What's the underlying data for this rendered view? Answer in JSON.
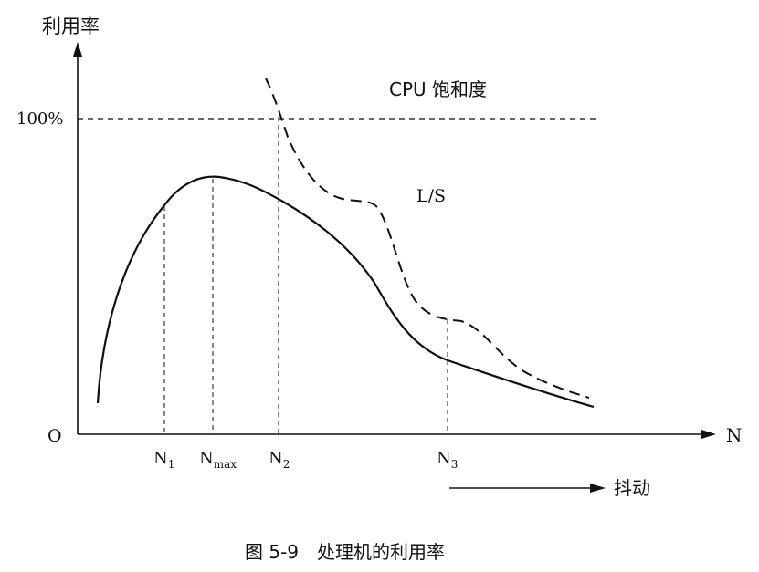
{
  "figure": {
    "y_axis_label": "利用率",
    "x_axis_label": "N",
    "origin_label": "O",
    "hundred_label": "100%",
    "cpu_saturation_label": "CPU 饱和度",
    "ls_label": "L/S",
    "ticks": {
      "n1": {
        "base": "N",
        "sub": "1"
      },
      "nmax": {
        "base": "N",
        "sub": "max"
      },
      "n2": {
        "base": "N",
        "sub": "2"
      },
      "n3": {
        "base": "N",
        "sub": "3"
      }
    },
    "thrashing_label": "抖动",
    "caption": "图 5-9　处理机的利用率"
  }
}
